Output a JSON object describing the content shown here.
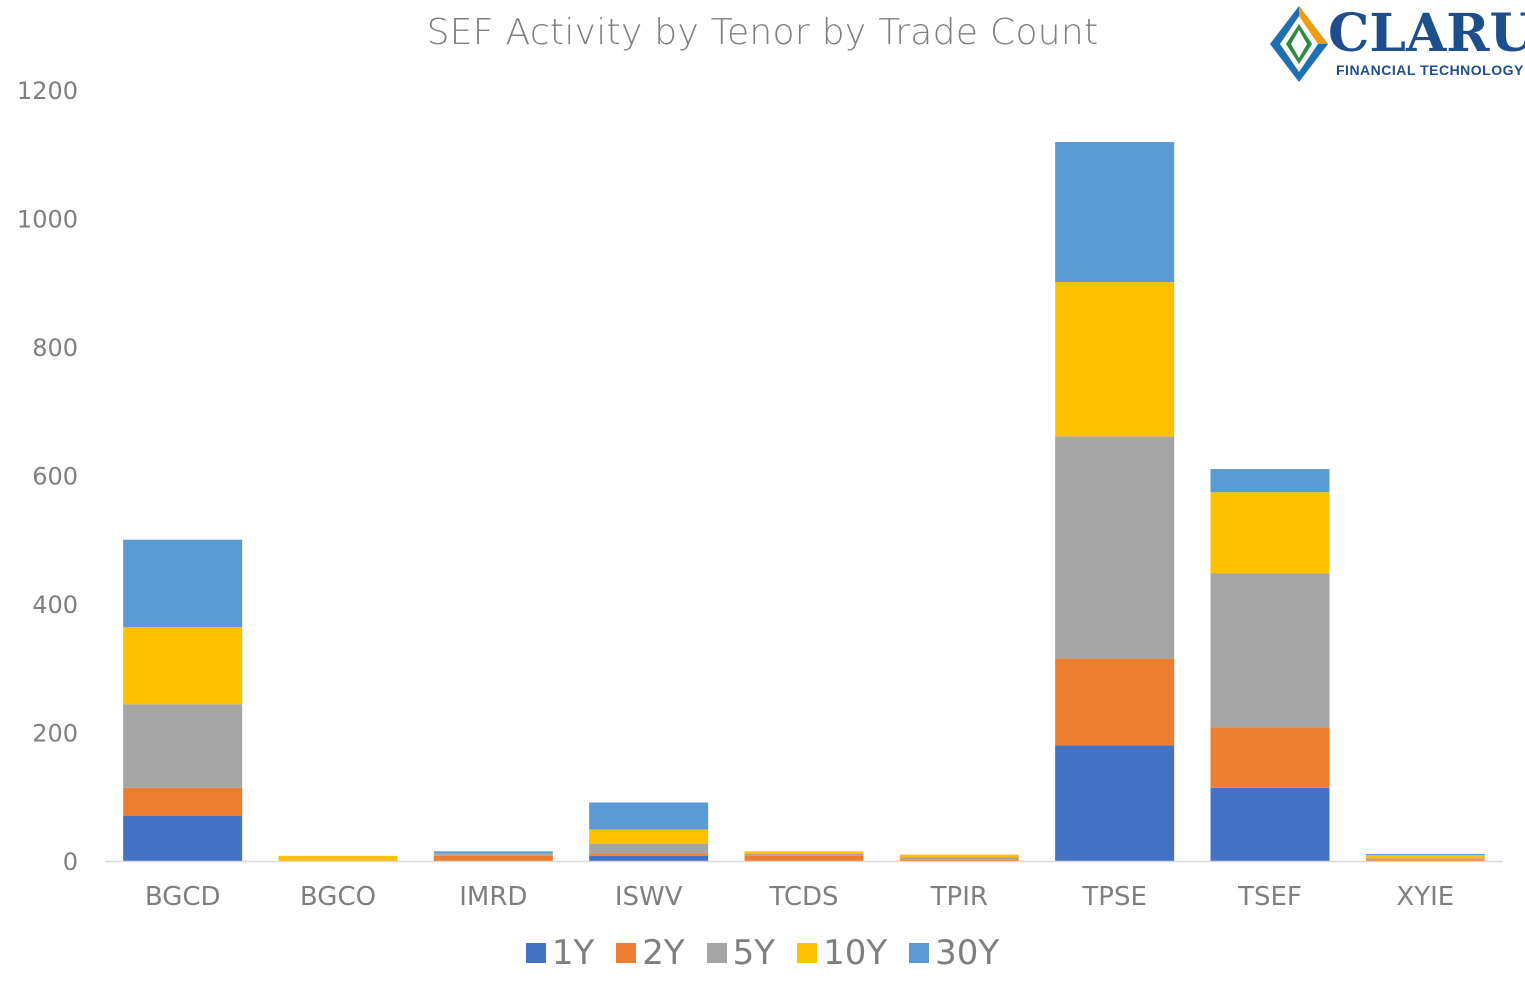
{
  "chart_data": {
    "type": "bar",
    "stacked": true,
    "title": "SEF Activity by Tenor by Trade Count",
    "xlabel": "",
    "ylabel": "",
    "ylim": [
      0,
      1200
    ],
    "yticks": [
      0,
      200,
      400,
      600,
      800,
      1000,
      1200
    ],
    "grid": false,
    "legend": "bottom",
    "categories": [
      "BGCD",
      "BGCO",
      "IMRD",
      "ISWV",
      "TCDS",
      "TPIR",
      "TPSE",
      "TSEF",
      "XYIE"
    ],
    "series": [
      {
        "name": "1Y",
        "color": "#4472c4",
        "values": [
          70,
          0,
          0,
          8,
          0,
          0,
          180,
          114,
          0
        ]
      },
      {
        "name": "2Y",
        "color": "#ed7d31",
        "values": [
          44,
          0,
          8,
          4,
          8,
          2,
          135,
          94,
          2
        ]
      },
      {
        "name": "5Y",
        "color": "#a5a5a5",
        "values": [
          130,
          0,
          4,
          15,
          3,
          4,
          346,
          240,
          2
        ]
      },
      {
        "name": "10Y",
        "color": "#ffc000",
        "values": [
          120,
          8,
          0,
          22,
          4,
          4,
          240,
          126,
          5
        ]
      },
      {
        "name": "30Y",
        "color": "#5b9bd5",
        "values": [
          136,
          0,
          3,
          42,
          0,
          0,
          218,
          36,
          2
        ]
      }
    ]
  },
  "logo": {
    "name": "CLARUS",
    "subtitle": "FINANCIAL TECHNOLOGY"
  }
}
